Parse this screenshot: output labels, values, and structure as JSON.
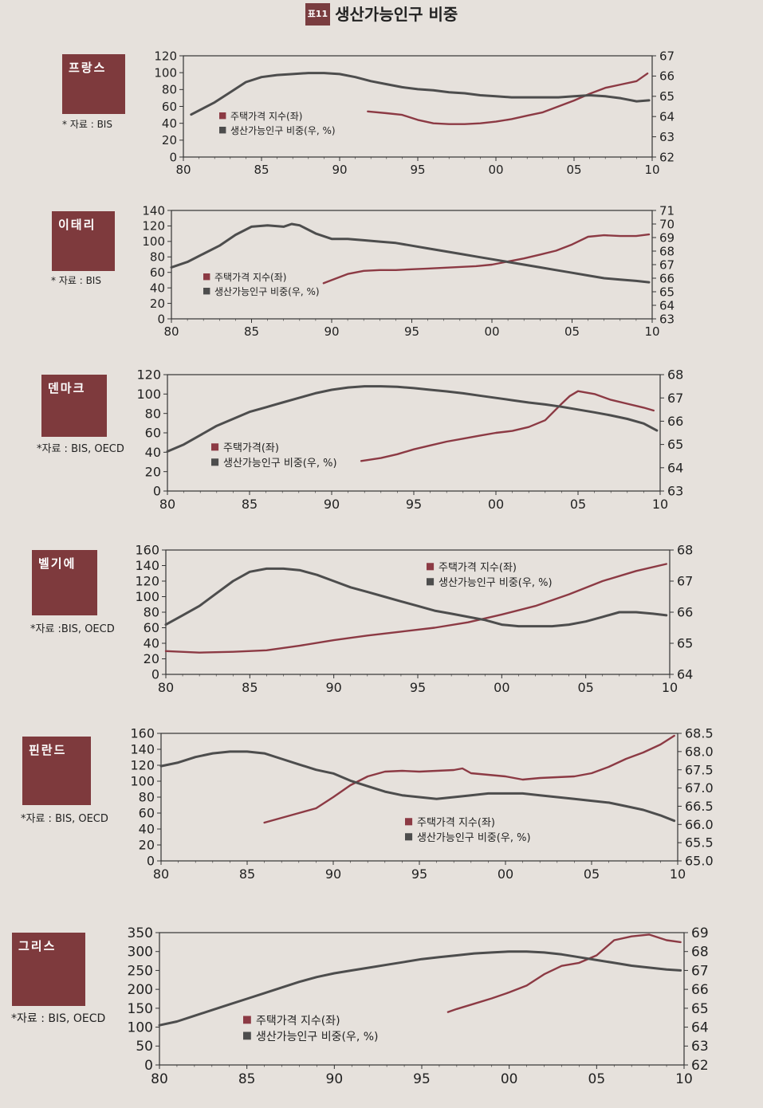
{
  "title": {
    "badge": "표11",
    "text": "생산가능인구 비중"
  },
  "colors": {
    "house": "#8c3a44",
    "pop": "#4d4d4d",
    "box": "#7e3a3d"
  },
  "chart_data": [
    {
      "type": "line",
      "country": "프랑스",
      "source": "* 자료 : BIS",
      "x_ticks": [
        "80",
        "85",
        "90",
        "95",
        "00",
        "05",
        "10"
      ],
      "y_left": {
        "min": 0,
        "max": 120,
        "ticks": [
          "0",
          "20",
          "40",
          "60",
          "80",
          "100",
          "120"
        ]
      },
      "y_right": {
        "min": 62,
        "max": 67,
        "ticks": [
          "62",
          "63",
          "64",
          "65",
          "66",
          "67"
        ]
      },
      "legend": [
        "주택가격 지수(좌)",
        "생산가능인구 비중(우, %)"
      ],
      "series": [
        {
          "name": "주택가격 지수(좌)",
          "axis": "left",
          "x": [
            1991.8,
            1993,
            1994,
            1995,
            1996,
            1997,
            1998,
            1999,
            2000,
            2001,
            2002,
            2003,
            2004,
            2005,
            2006,
            2007,
            2008,
            2009,
            2009.7
          ],
          "values": [
            54,
            52,
            50,
            44,
            40,
            39,
            39,
            40,
            42,
            45,
            49,
            53,
            60,
            67,
            75,
            82,
            86,
            90,
            99
          ]
        },
        {
          "name": "생산가능인구 비중(우, %)",
          "axis": "right",
          "x": [
            1980.5,
            1982,
            1983,
            1984,
            1985,
            1986,
            1987,
            1988,
            1989,
            1990,
            1991,
            1992,
            1993,
            1994,
            1995,
            1996,
            1997,
            1998,
            1999,
            2000,
            2001,
            2002,
            2003,
            2004,
            2005,
            2006,
            2007,
            2008,
            2009,
            2009.8
          ],
          "values": [
            64.1,
            64.7,
            65.2,
            65.7,
            65.95,
            66.05,
            66.1,
            66.15,
            66.15,
            66.1,
            65.95,
            65.75,
            65.6,
            65.45,
            65.35,
            65.3,
            65.2,
            65.15,
            65.05,
            65.0,
            64.95,
            64.95,
            64.95,
            64.95,
            65.0,
            65.05,
            65.0,
            64.9,
            64.75,
            64.8
          ]
        }
      ]
    },
    {
      "type": "line",
      "country": "이태리",
      "source": "* 자료 : BIS",
      "x_ticks": [
        "80",
        "85",
        "90",
        "95",
        "00",
        "05",
        "10"
      ],
      "y_left": {
        "min": 0,
        "max": 140,
        "ticks": [
          "0",
          "20",
          "40",
          "60",
          "80",
          "100",
          "120",
          "140"
        ]
      },
      "y_right": {
        "min": 63,
        "max": 71,
        "ticks": [
          "63",
          "64",
          "65",
          "66",
          "67",
          "68",
          "69",
          "70",
          "71"
        ]
      },
      "legend": [
        "주택가격 지수(좌)",
        "생산가능인구 비중(우, %)"
      ],
      "series": [
        {
          "name": "주택가격 지수(좌)",
          "axis": "left",
          "x": [
            1989.5,
            1990,
            1991,
            1992,
            1993,
            1994,
            1995,
            1996,
            1997,
            1998,
            1999,
            2000,
            2001,
            2002,
            2003,
            2004,
            2005,
            2006,
            2007,
            2008,
            2009,
            2009.8
          ],
          "values": [
            46,
            50,
            58,
            62,
            63,
            63,
            64,
            65,
            66,
            67,
            68,
            70,
            74,
            78,
            83,
            88,
            96,
            106,
            108,
            107,
            107,
            109
          ]
        },
        {
          "name": "생산가능인구 비중(우, %)",
          "axis": "right",
          "x": [
            1980,
            1981,
            1982,
            1983,
            1984,
            1985,
            1986,
            1987,
            1987.5,
            1988,
            1989,
            1990,
            1991,
            1992,
            1993,
            1994,
            1995,
            1996,
            1997,
            1998,
            1999,
            2000,
            2001,
            2002,
            2003,
            2004,
            2005,
            2006,
            2007,
            2008,
            2009,
            2009.8
          ],
          "values": [
            66.8,
            67.2,
            67.8,
            68.4,
            69.2,
            69.8,
            69.9,
            69.8,
            70.0,
            69.9,
            69.3,
            68.9,
            68.9,
            68.8,
            68.7,
            68.6,
            68.4,
            68.2,
            68.0,
            67.8,
            67.6,
            67.4,
            67.2,
            67.0,
            66.8,
            66.6,
            66.4,
            66.2,
            66.0,
            65.9,
            65.8,
            65.7
          ]
        }
      ]
    },
    {
      "type": "line",
      "country": "덴마크",
      "source": "*자료 : BIS, OECD",
      "x_ticks": [
        "80",
        "85",
        "90",
        "95",
        "00",
        "05",
        "10"
      ],
      "y_left": {
        "min": 0,
        "max": 120,
        "ticks": [
          "0",
          "20",
          "40",
          "60",
          "80",
          "100",
          "120"
        ]
      },
      "y_right": {
        "min": 63,
        "max": 68,
        "ticks": [
          "63",
          "64",
          "65",
          "66",
          "67",
          "68"
        ]
      },
      "legend": [
        "주택가격(좌)",
        "생산가능인구 비중(우, %)"
      ],
      "series": [
        {
          "name": "주택가격(좌)",
          "axis": "left",
          "x": [
            1991.8,
            1993,
            1994,
            1995,
            1996,
            1997,
            1998,
            1999,
            2000,
            2001,
            2002,
            2003,
            2004,
            2004.5,
            2005,
            2006,
            2007,
            2008,
            2009,
            2009.6
          ],
          "values": [
            31,
            34,
            38,
            43,
            47,
            51,
            54,
            57,
            60,
            62,
            66,
            73,
            90,
            98,
            103,
            100,
            94,
            90,
            86,
            83
          ]
        },
        {
          "name": "생산가능인구 비중(우, %)",
          "axis": "right",
          "x": [
            1980,
            1981,
            1982,
            1983,
            1984,
            1985,
            1986,
            1987,
            1988,
            1989,
            1990,
            1991,
            1992,
            1993,
            1994,
            1995,
            1996,
            1997,
            1998,
            1999,
            2000,
            2001,
            2002,
            2003,
            2004,
            2005,
            2006,
            2007,
            2008,
            2009,
            2009.8
          ],
          "values": [
            64.7,
            65.0,
            65.4,
            65.8,
            66.1,
            66.4,
            66.6,
            66.8,
            67.0,
            67.2,
            67.35,
            67.45,
            67.5,
            67.5,
            67.48,
            67.42,
            67.35,
            67.28,
            67.2,
            67.1,
            67.0,
            66.9,
            66.8,
            66.72,
            66.62,
            66.5,
            66.38,
            66.25,
            66.1,
            65.9,
            65.6
          ]
        }
      ]
    },
    {
      "type": "line",
      "country": "벨기에",
      "source": "*자료 :BIS, OECD",
      "x_ticks": [
        "80",
        "85",
        "90",
        "95",
        "00",
        "05",
        "10"
      ],
      "y_left": {
        "min": 0,
        "max": 160,
        "ticks": [
          "0",
          "20",
          "40",
          "60",
          "80",
          "100",
          "120",
          "140",
          "160"
        ]
      },
      "y_right": {
        "min": 64,
        "max": 68,
        "ticks": [
          "64",
          "65",
          "66",
          "67",
          "68"
        ]
      },
      "legend": [
        "주택가격 지수(좌)",
        "생산가능인구 비중(우, %)"
      ],
      "series": [
        {
          "name": "주택가격 지수(좌)",
          "axis": "left",
          "x": [
            1980,
            1982,
            1984,
            1986,
            1988,
            1990,
            1992,
            1994,
            1996,
            1998,
            2000,
            2002,
            2004,
            2006,
            2008,
            2009.8
          ],
          "values": [
            30,
            28,
            29,
            31,
            37,
            44,
            50,
            55,
            60,
            67,
            77,
            88,
            103,
            120,
            133,
            142
          ]
        },
        {
          "name": "생산가능인구 비중(우, %)",
          "axis": "right",
          "x": [
            1980,
            1981,
            1982,
            1983,
            1984,
            1985,
            1986,
            1987,
            1988,
            1989,
            1990,
            1991,
            1992,
            1993,
            1994,
            1995,
            1996,
            1997,
            1998,
            1999,
            2000,
            2001,
            2002,
            2003,
            2004,
            2005,
            2006,
            2007,
            2008,
            2009,
            2009.8
          ],
          "values": [
            65.6,
            65.9,
            66.2,
            66.6,
            67.0,
            67.3,
            67.4,
            67.4,
            67.35,
            67.2,
            67.0,
            66.8,
            66.65,
            66.5,
            66.35,
            66.2,
            66.05,
            65.95,
            65.85,
            65.75,
            65.6,
            65.55,
            65.55,
            65.55,
            65.6,
            65.7,
            65.85,
            66.0,
            66.0,
            65.95,
            65.9
          ]
        }
      ]
    },
    {
      "type": "line",
      "country": "핀란드",
      "source": "*자료 : BIS, OECD",
      "x_ticks": [
        "80",
        "85",
        "90",
        "95",
        "00",
        "05",
        "10"
      ],
      "y_left": {
        "min": 0,
        "max": 160,
        "ticks": [
          "0",
          "20",
          "40",
          "60",
          "80",
          "100",
          "120",
          "140",
          "160"
        ]
      },
      "y_right": {
        "min": 65.0,
        "max": 68.5,
        "ticks": [
          "65.0",
          "65.5",
          "66.0",
          "66.5",
          "67.0",
          "67.5",
          "68.0",
          "68.5"
        ]
      },
      "legend": [
        "주택가격 지수(좌)",
        "생산가능인구 비중(우, %)"
      ],
      "series": [
        {
          "name": "주택가격 지수(좌)",
          "axis": "left",
          "x": [
            1986,
            1987,
            1988,
            1989,
            1990,
            1991,
            1992,
            1993,
            1994,
            1995,
            1996,
            1997,
            1997.5,
            1998,
            1999,
            2000,
            2001,
            2002,
            2003,
            2004,
            2005,
            2006,
            2007,
            2008,
            2009,
            2009.8
          ],
          "values": [
            48,
            54,
            60,
            66,
            80,
            95,
            106,
            112,
            113,
            112,
            113,
            114,
            116,
            110,
            108,
            106,
            102,
            104,
            105,
            106,
            110,
            118,
            128,
            136,
            146,
            157
          ]
        },
        {
          "name": "생산가능인구 비중(우, %)",
          "axis": "right",
          "x": [
            1980,
            1981,
            1982,
            1983,
            1984,
            1985,
            1986,
            1987,
            1988,
            1989,
            1990,
            1991,
            1992,
            1993,
            1994,
            1995,
            1996,
            1997,
            1998,
            1999,
            2000,
            2001,
            2002,
            2003,
            2004,
            2005,
            2006,
            2007,
            2008,
            2009,
            2009.8
          ],
          "values": [
            67.6,
            67.7,
            67.85,
            67.95,
            68.0,
            68.0,
            67.95,
            67.8,
            67.65,
            67.5,
            67.4,
            67.2,
            67.05,
            66.9,
            66.8,
            66.75,
            66.7,
            66.75,
            66.8,
            66.85,
            66.85,
            66.85,
            66.8,
            66.75,
            66.7,
            66.65,
            66.6,
            66.5,
            66.4,
            66.25,
            66.1
          ]
        }
      ]
    },
    {
      "type": "line",
      "country": "그리스",
      "source": "*자료 : BIS, OECD",
      "x_ticks": [
        "80",
        "85",
        "90",
        "95",
        "00",
        "05",
        "10"
      ],
      "y_left": {
        "min": 0,
        "max": 350,
        "ticks": [
          "0",
          "50",
          "100",
          "150",
          "200",
          "250",
          "300",
          "350"
        ]
      },
      "y_right": {
        "min": 62,
        "max": 69,
        "ticks": [
          "62",
          "63",
          "64",
          "65",
          "66",
          "67",
          "68",
          "69"
        ]
      },
      "legend": [
        "주택가격 지수(좌)",
        "생산가능인구 비중(우, %)"
      ],
      "series": [
        {
          "name": "주택가격 지수(좌)",
          "axis": "left",
          "x": [
            1996.5,
            1997,
            1998,
            1999,
            2000,
            2001,
            2002,
            2003,
            2004,
            2005,
            2006,
            2007,
            2008,
            2009,
            2009.8
          ],
          "values": [
            140,
            148,
            162,
            176,
            192,
            210,
            240,
            262,
            270,
            290,
            330,
            340,
            345,
            330,
            325
          ]
        },
        {
          "name": "생산가능인구 비중(우, %)",
          "axis": "right",
          "x": [
            1980,
            1981,
            1982,
            1983,
            1984,
            1985,
            1986,
            1987,
            1988,
            1989,
            1990,
            1991,
            1992,
            1993,
            1994,
            1995,
            1996,
            1997,
            1998,
            1999,
            2000,
            2001,
            2002,
            2003,
            2004,
            2005,
            2006,
            2007,
            2008,
            2009,
            2009.8
          ],
          "values": [
            64.1,
            64.3,
            64.6,
            64.9,
            65.2,
            65.5,
            65.8,
            66.1,
            66.4,
            66.65,
            66.85,
            67.0,
            67.15,
            67.3,
            67.45,
            67.6,
            67.7,
            67.8,
            67.9,
            67.95,
            68.0,
            68.0,
            67.95,
            67.85,
            67.7,
            67.55,
            67.4,
            67.25,
            67.15,
            67.05,
            67.0
          ]
        }
      ]
    }
  ]
}
